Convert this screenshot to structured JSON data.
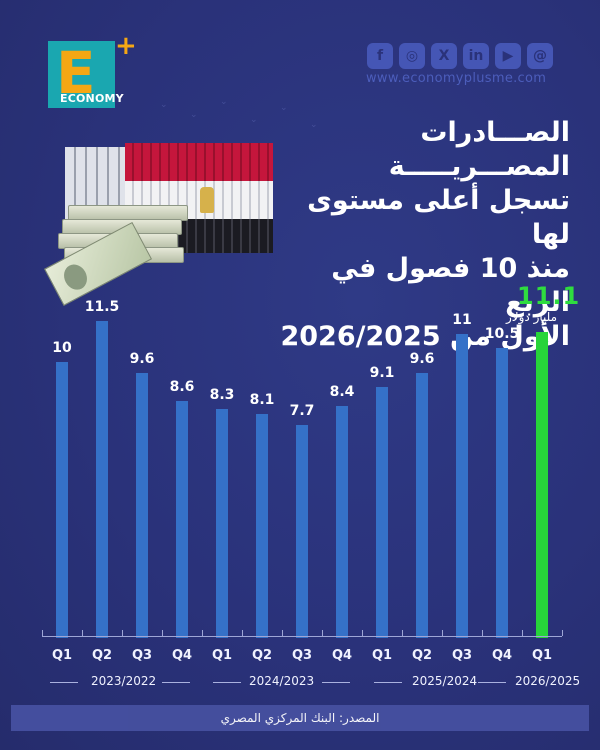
{
  "brand": {
    "logo_letter": "E",
    "logo_plus": "+",
    "logo_word": "ECONOMY",
    "website": "www.economyplusme.com",
    "social_icons": [
      "facebook-icon",
      "instagram-icon",
      "x-icon",
      "linkedin-icon",
      "youtube-icon",
      "threads-icon"
    ],
    "social_glyphs": [
      "f",
      "◎",
      "X",
      "in",
      "▶",
      "@"
    ]
  },
  "title": {
    "line1": "الصـــادرات المصـــريـــــة",
    "line2": "تسجل أعلى مستوى لها",
    "line3": "منذ 10 فصول في الربع",
    "line4": "الأول من 2026/2025"
  },
  "chart_data": {
    "type": "bar",
    "title": "الصادرات المصرية تسجل أعلى مستوى لها منذ 10 فصول في الربع الأول من 2026/2025",
    "categories": [
      "Q1 2022/2023",
      "Q2 2022/2023",
      "Q3 2022/2023",
      "Q4 2022/2023",
      "Q1 2023/2024",
      "Q2 2023/2024",
      "Q3 2023/2024",
      "Q4 2023/2024",
      "Q1 2024/2025",
      "Q2 2024/2025",
      "Q3 2024/2025",
      "Q4 2024/2025",
      "Q1 2025/2026"
    ],
    "quarter_labels": [
      "Q1",
      "Q2",
      "Q3",
      "Q4",
      "Q1",
      "Q2",
      "Q3",
      "Q4",
      "Q1",
      "Q2",
      "Q3",
      "Q4",
      "Q1"
    ],
    "value_labels": [
      "10",
      "11.5",
      "9.6",
      "8.6",
      "8.3",
      "8.1",
      "7.7",
      "8.4",
      "9.1",
      "9.6",
      "11",
      "10.5",
      "11.1"
    ],
    "values": [
      10,
      11.5,
      9.6,
      8.6,
      8.3,
      8.1,
      7.7,
      8.4,
      9.1,
      9.6,
      11,
      10.5,
      11.1
    ],
    "highlight_index": 12,
    "unit_label": "مليار دولار",
    "fiscal_years": [
      "2023/2022",
      "2024/2023",
      "2025/2024",
      "2026/2025"
    ],
    "colors": {
      "bar": "#3571c8",
      "highlight": "#27d43a",
      "background": "#2a327a"
    },
    "xlabel": "",
    "ylabel": "مليار دولار",
    "ylim": [
      0,
      12
    ],
    "grid": false,
    "legend": "none"
  },
  "footer": {
    "source": "المصدر: البنك المركزي المصري"
  }
}
